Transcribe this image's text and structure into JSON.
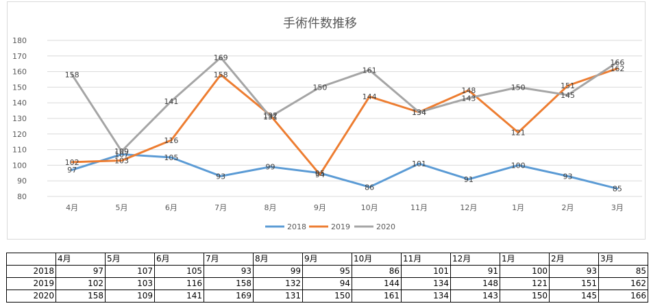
{
  "chart_data": {
    "type": "line",
    "title": "手術件数推移",
    "categories": [
      "4月",
      "5月",
      "6月",
      "7月",
      "8月",
      "9月",
      "10月",
      "11月",
      "12月",
      "1月",
      "2月",
      "3月"
    ],
    "series": [
      {
        "name": "2018",
        "color": "#5b9bd5",
        "values": [
          97,
          107,
          105,
          93,
          99,
          95,
          86,
          101,
          91,
          100,
          93,
          85
        ]
      },
      {
        "name": "2019",
        "color": "#ed7d31",
        "values": [
          102,
          103,
          116,
          158,
          132,
          94,
          144,
          134,
          148,
          121,
          151,
          162
        ]
      },
      {
        "name": "2020",
        "color": "#a5a5a5",
        "values": [
          158,
          109,
          141,
          169,
          131,
          150,
          161,
          134,
          143,
          150,
          145,
          166
        ]
      }
    ],
    "y_ticks": [
      "80",
      "90",
      "100",
      "110",
      "120",
      "130",
      "140",
      "150",
      "160",
      "170",
      "180"
    ],
    "ylim": [
      80,
      180
    ],
    "grid": true,
    "legend_position": "bottom",
    "data_labels": true
  }
}
